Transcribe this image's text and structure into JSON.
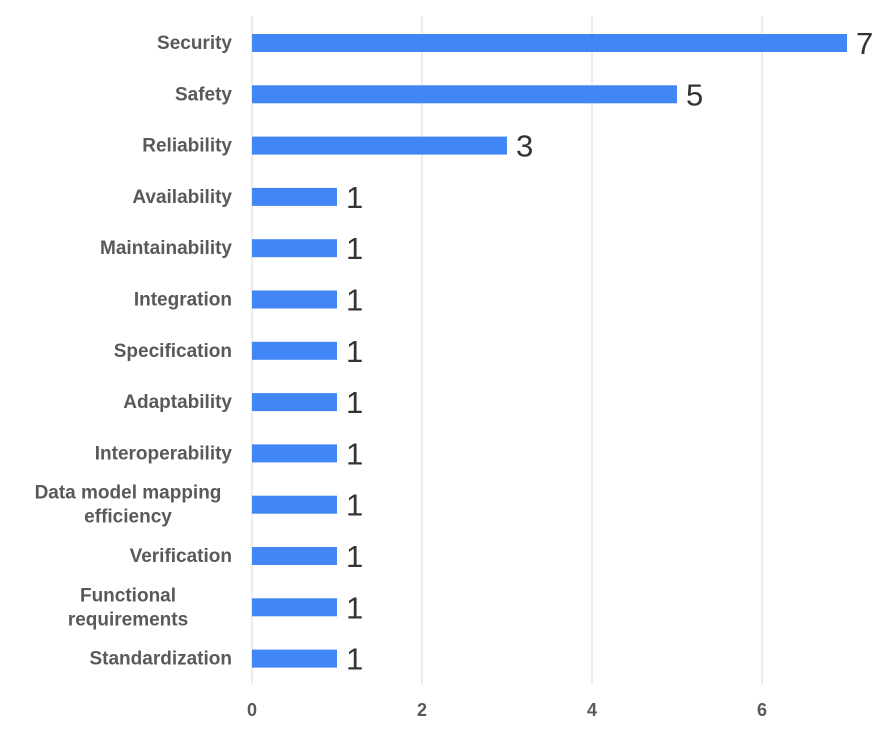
{
  "chart_data": {
    "type": "bar",
    "orientation": "horizontal",
    "categories": [
      "Security",
      "Safety",
      "Reliability",
      "Availability",
      "Maintainability",
      "Integration",
      "Specification",
      "Adaptability",
      "Interoperability",
      "Data model mapping efficiency",
      "Verification",
      "Functional requirements",
      "Standardization"
    ],
    "category_lines": [
      [
        "Security"
      ],
      [
        "Safety"
      ],
      [
        "Reliability"
      ],
      [
        "Availability"
      ],
      [
        "Maintainability"
      ],
      [
        "Integration"
      ],
      [
        "Specification"
      ],
      [
        "Adaptability"
      ],
      [
        "Interoperability"
      ],
      [
        "Data model mapping",
        "efficiency"
      ],
      [
        "Verification"
      ],
      [
        "Functional",
        "requirements"
      ],
      [
        "Standardization"
      ]
    ],
    "values": [
      7,
      5,
      3,
      1,
      1,
      1,
      1,
      1,
      1,
      1,
      1,
      1,
      1
    ],
    "data_labels": [
      "7",
      "5",
      "3",
      "1",
      "1",
      "1",
      "1",
      "1",
      "1",
      "1",
      "1",
      "1",
      "1"
    ],
    "x_ticks": [
      0,
      2,
      4,
      6
    ],
    "x_tick_labels": [
      "0",
      "2",
      "4",
      "6"
    ],
    "xlim": [
      0,
      7.2
    ],
    "title": "",
    "xlabel": "",
    "ylabel": "",
    "grid": true,
    "legend": "none",
    "bar_color": "#4285f4",
    "grid_color": "#d9d9d9",
    "label_color": "#595959",
    "data_label_color": "#333333"
  }
}
